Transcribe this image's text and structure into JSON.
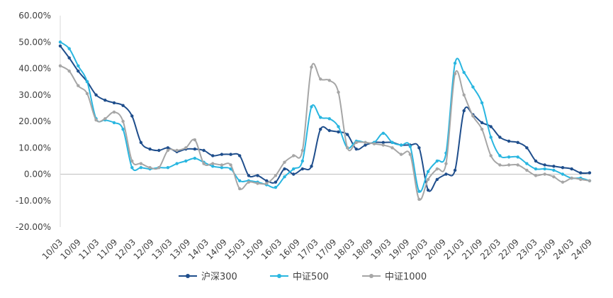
{
  "chart_data": {
    "type": "line",
    "title": "",
    "xlabel": "",
    "ylabel": "",
    "ylim": [
      -0.2,
      0.6
    ],
    "yticks": [
      "60.00%",
      "50.00%",
      "40.00%",
      "30.00%",
      "20.00%",
      "10.00%",
      "0.00%",
      "-10.00%",
      "-20.00%"
    ],
    "xticks": [
      "10/03",
      "10/09",
      "11/03",
      "11/09",
      "12/03",
      "12/09",
      "13/03",
      "13/09",
      "14/03",
      "14/09",
      "15/03",
      "15/09",
      "16/03",
      "16/09",
      "17/03",
      "17/09",
      "18/03",
      "18/09",
      "19/03",
      "19/09",
      "20/03",
      "20/09",
      "21/03",
      "21/09",
      "22/03",
      "22/09",
      "23/03",
      "23/09",
      "24/03",
      "24/09"
    ],
    "grid": false,
    "legend_position": "bottom-center",
    "series": [
      {
        "name": "沪深300",
        "color": "#1f4e8c",
        "values": [
          0.485,
          0.44,
          0.39,
          0.35,
          0.3,
          0.28,
          0.27,
          0.26,
          0.22,
          0.12,
          0.095,
          0.09,
          0.1,
          0.085,
          0.095,
          0.095,
          0.09,
          0.07,
          0.075,
          0.075,
          0.07,
          -0.005,
          -0.005,
          -0.025,
          -0.03,
          0.02,
          0.0,
          0.02,
          0.03,
          0.17,
          0.165,
          0.16,
          0.15,
          0.095,
          0.11,
          0.12,
          0.12,
          0.12,
          0.11,
          0.11,
          0.1,
          -0.06,
          -0.02,
          0.0,
          0.015,
          0.24,
          0.225,
          0.195,
          0.18,
          0.14,
          0.125,
          0.12,
          0.1,
          0.05,
          0.035,
          0.03,
          0.025,
          0.02,
          0.005,
          0.005
        ]
      },
      {
        "name": "中证500",
        "color": "#29b6e0",
        "values": [
          0.5,
          0.475,
          0.41,
          0.35,
          0.21,
          0.205,
          0.195,
          0.17,
          0.025,
          0.025,
          0.02,
          0.025,
          0.025,
          0.04,
          0.05,
          0.06,
          0.045,
          0.03,
          0.025,
          0.02,
          -0.025,
          -0.025,
          -0.03,
          -0.04,
          -0.05,
          -0.01,
          0.02,
          0.05,
          0.255,
          0.215,
          0.21,
          0.18,
          0.1,
          0.125,
          0.12,
          0.12,
          0.155,
          0.12,
          0.11,
          0.105,
          -0.065,
          0.01,
          0.05,
          0.08,
          0.42,
          0.385,
          0.33,
          0.27,
          0.14,
          0.07,
          0.065,
          0.065,
          0.04,
          0.02,
          0.02,
          0.015,
          0.0,
          -0.015,
          -0.015,
          -0.025
        ]
      },
      {
        "name": "中证1000",
        "color": "#a6a6a6",
        "values": [
          0.41,
          0.39,
          0.335,
          0.305,
          0.205,
          0.21,
          0.235,
          0.2,
          0.05,
          0.04,
          0.025,
          0.025,
          0.09,
          0.09,
          0.1,
          0.13,
          0.04,
          0.04,
          0.035,
          0.035,
          -0.055,
          -0.03,
          -0.035,
          -0.035,
          -0.005,
          0.045,
          0.07,
          0.09,
          0.405,
          0.36,
          0.355,
          0.31,
          0.1,
          0.12,
          0.12,
          0.115,
          0.11,
          0.1,
          0.075,
          0.075,
          -0.095,
          -0.02,
          0.02,
          0.04,
          0.38,
          0.3,
          0.22,
          0.17,
          0.07,
          0.035,
          0.035,
          0.035,
          0.015,
          -0.005,
          0.0,
          -0.01,
          -0.03,
          -0.015,
          -0.02,
          -0.025
        ]
      }
    ]
  }
}
